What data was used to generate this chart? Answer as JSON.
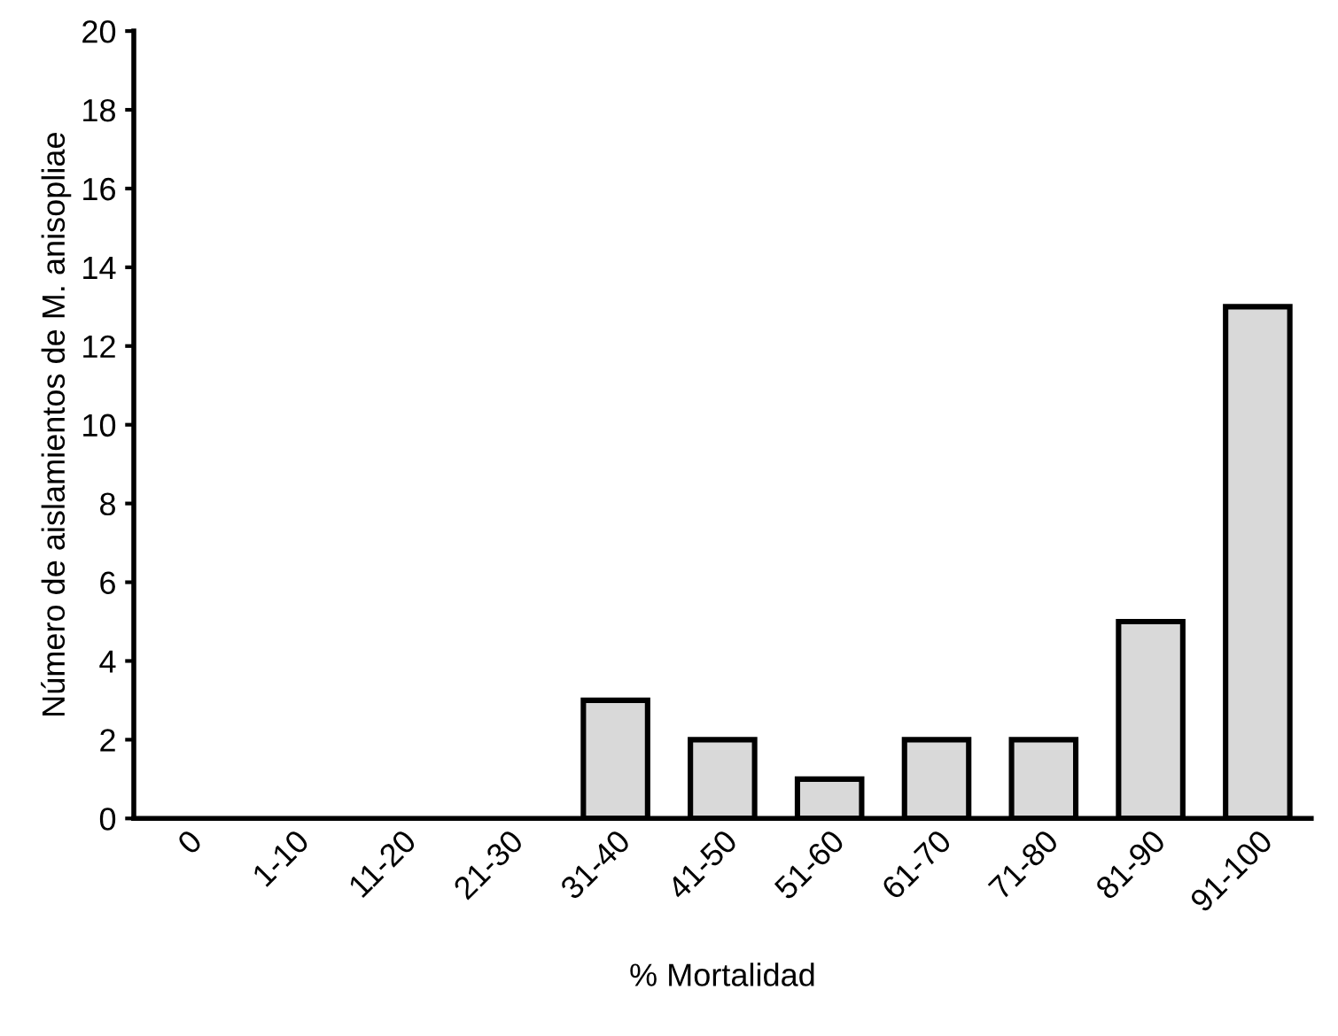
{
  "chart_data": {
    "type": "bar",
    "xlabel": "% Mortalidad",
    "ylabel": "Número de aislamientos de M. anisopliae",
    "categories": [
      "0",
      "1-10",
      "11-20",
      "21-30",
      "31-40",
      "41-50",
      "51-60",
      "61-70",
      "71-80",
      "81-90",
      "91-100"
    ],
    "values": [
      0,
      0,
      0,
      0,
      3,
      2,
      1,
      2,
      2,
      5,
      13
    ],
    "color": "#d9d9d9",
    "ylim": [
      0,
      20
    ],
    "yticks": [
      0,
      2,
      4,
      6,
      8,
      10,
      12,
      14,
      16,
      18,
      20
    ],
    "grid": false,
    "legend": false
  }
}
